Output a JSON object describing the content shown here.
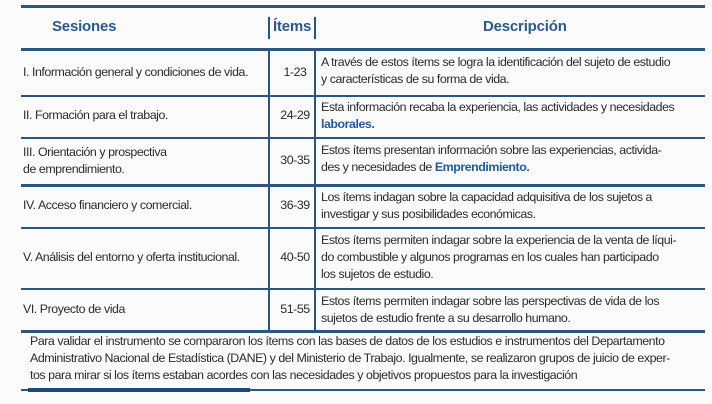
{
  "header": {
    "sessions": "Sesiones",
    "items": "Ítems",
    "description": "Descripción"
  },
  "rows": [
    {
      "session": [
        "I. Información general y condiciones de vida."
      ],
      "items": "1-23",
      "description": [
        [
          {
            "t": "A través de estos ítems se logra la identificación del sujeto de estudio"
          }
        ],
        [
          {
            "t": "y características de su forma de vida."
          }
        ]
      ]
    },
    {
      "session": [
        "II. Formación para el trabajo."
      ],
      "items": "24-29",
      "description": [
        [
          {
            "t": "Esta información recaba la experiencia, las actividades y necesidades"
          }
        ],
        [
          {
            "t": "laborales.",
            "b": true
          }
        ]
      ]
    },
    {
      "session": [
        "III. Orientación y prospectiva",
        "de emprendimiento."
      ],
      "items": "30-35",
      "description": [
        [
          {
            "t": "Estos ítems presentan información sobre las experiencias, activida-"
          }
        ],
        [
          {
            "t": "des y necesidades de "
          },
          {
            "t": "Emprendimiento.",
            "b": true
          }
        ]
      ]
    },
    {
      "session": [
        "IV. Acceso financiero y comercial."
      ],
      "items": "36-39",
      "description": [
        [
          {
            "t": "Los ítems indagan sobre la capacidad adquisitiva de los sujetos a"
          }
        ],
        [
          {
            "t": "investigar y sus posibilidades económicas."
          }
        ]
      ]
    },
    {
      "session": [
        "V. Análisis del entorno y oferta institucional."
      ],
      "items": "40-50",
      "description": [
        [
          {
            "t": "Estos ítems permiten indagar sobre la experiencia de la venta de líqui-"
          }
        ],
        [
          {
            "t": "do combustible y algunos programas en los cuales han participado"
          }
        ],
        [
          {
            "t": "los sujetos de estudio."
          }
        ]
      ]
    },
    {
      "session": [
        "VI. Proyecto de vida"
      ],
      "items": "51-55",
      "description": [
        [
          {
            "t": "Estos ítems permiten indagar sobre las perspectivas de vida de los"
          }
        ],
        [
          {
            "t": "sujetos de estudio frente a su desarrollo humano."
          }
        ]
      ]
    }
  ],
  "footnote": [
    "Para validar el instrumento se compararon los ítems con las bases de datos de los estudios e instrumentos del Departamento",
    "Administrativo Nacional de Estadística (DANE) y del Ministerio de Trabajo. Igualmente, se realizaron grupos de juicio de exper-",
    "tos para mirar si los ítems estaban acordes con las necesidades y objetivos propuestos para la investigación"
  ],
  "colors": {
    "rule": "#2a5681",
    "header_text": "#2a5a8c",
    "highlight": "#1f5a99"
  }
}
